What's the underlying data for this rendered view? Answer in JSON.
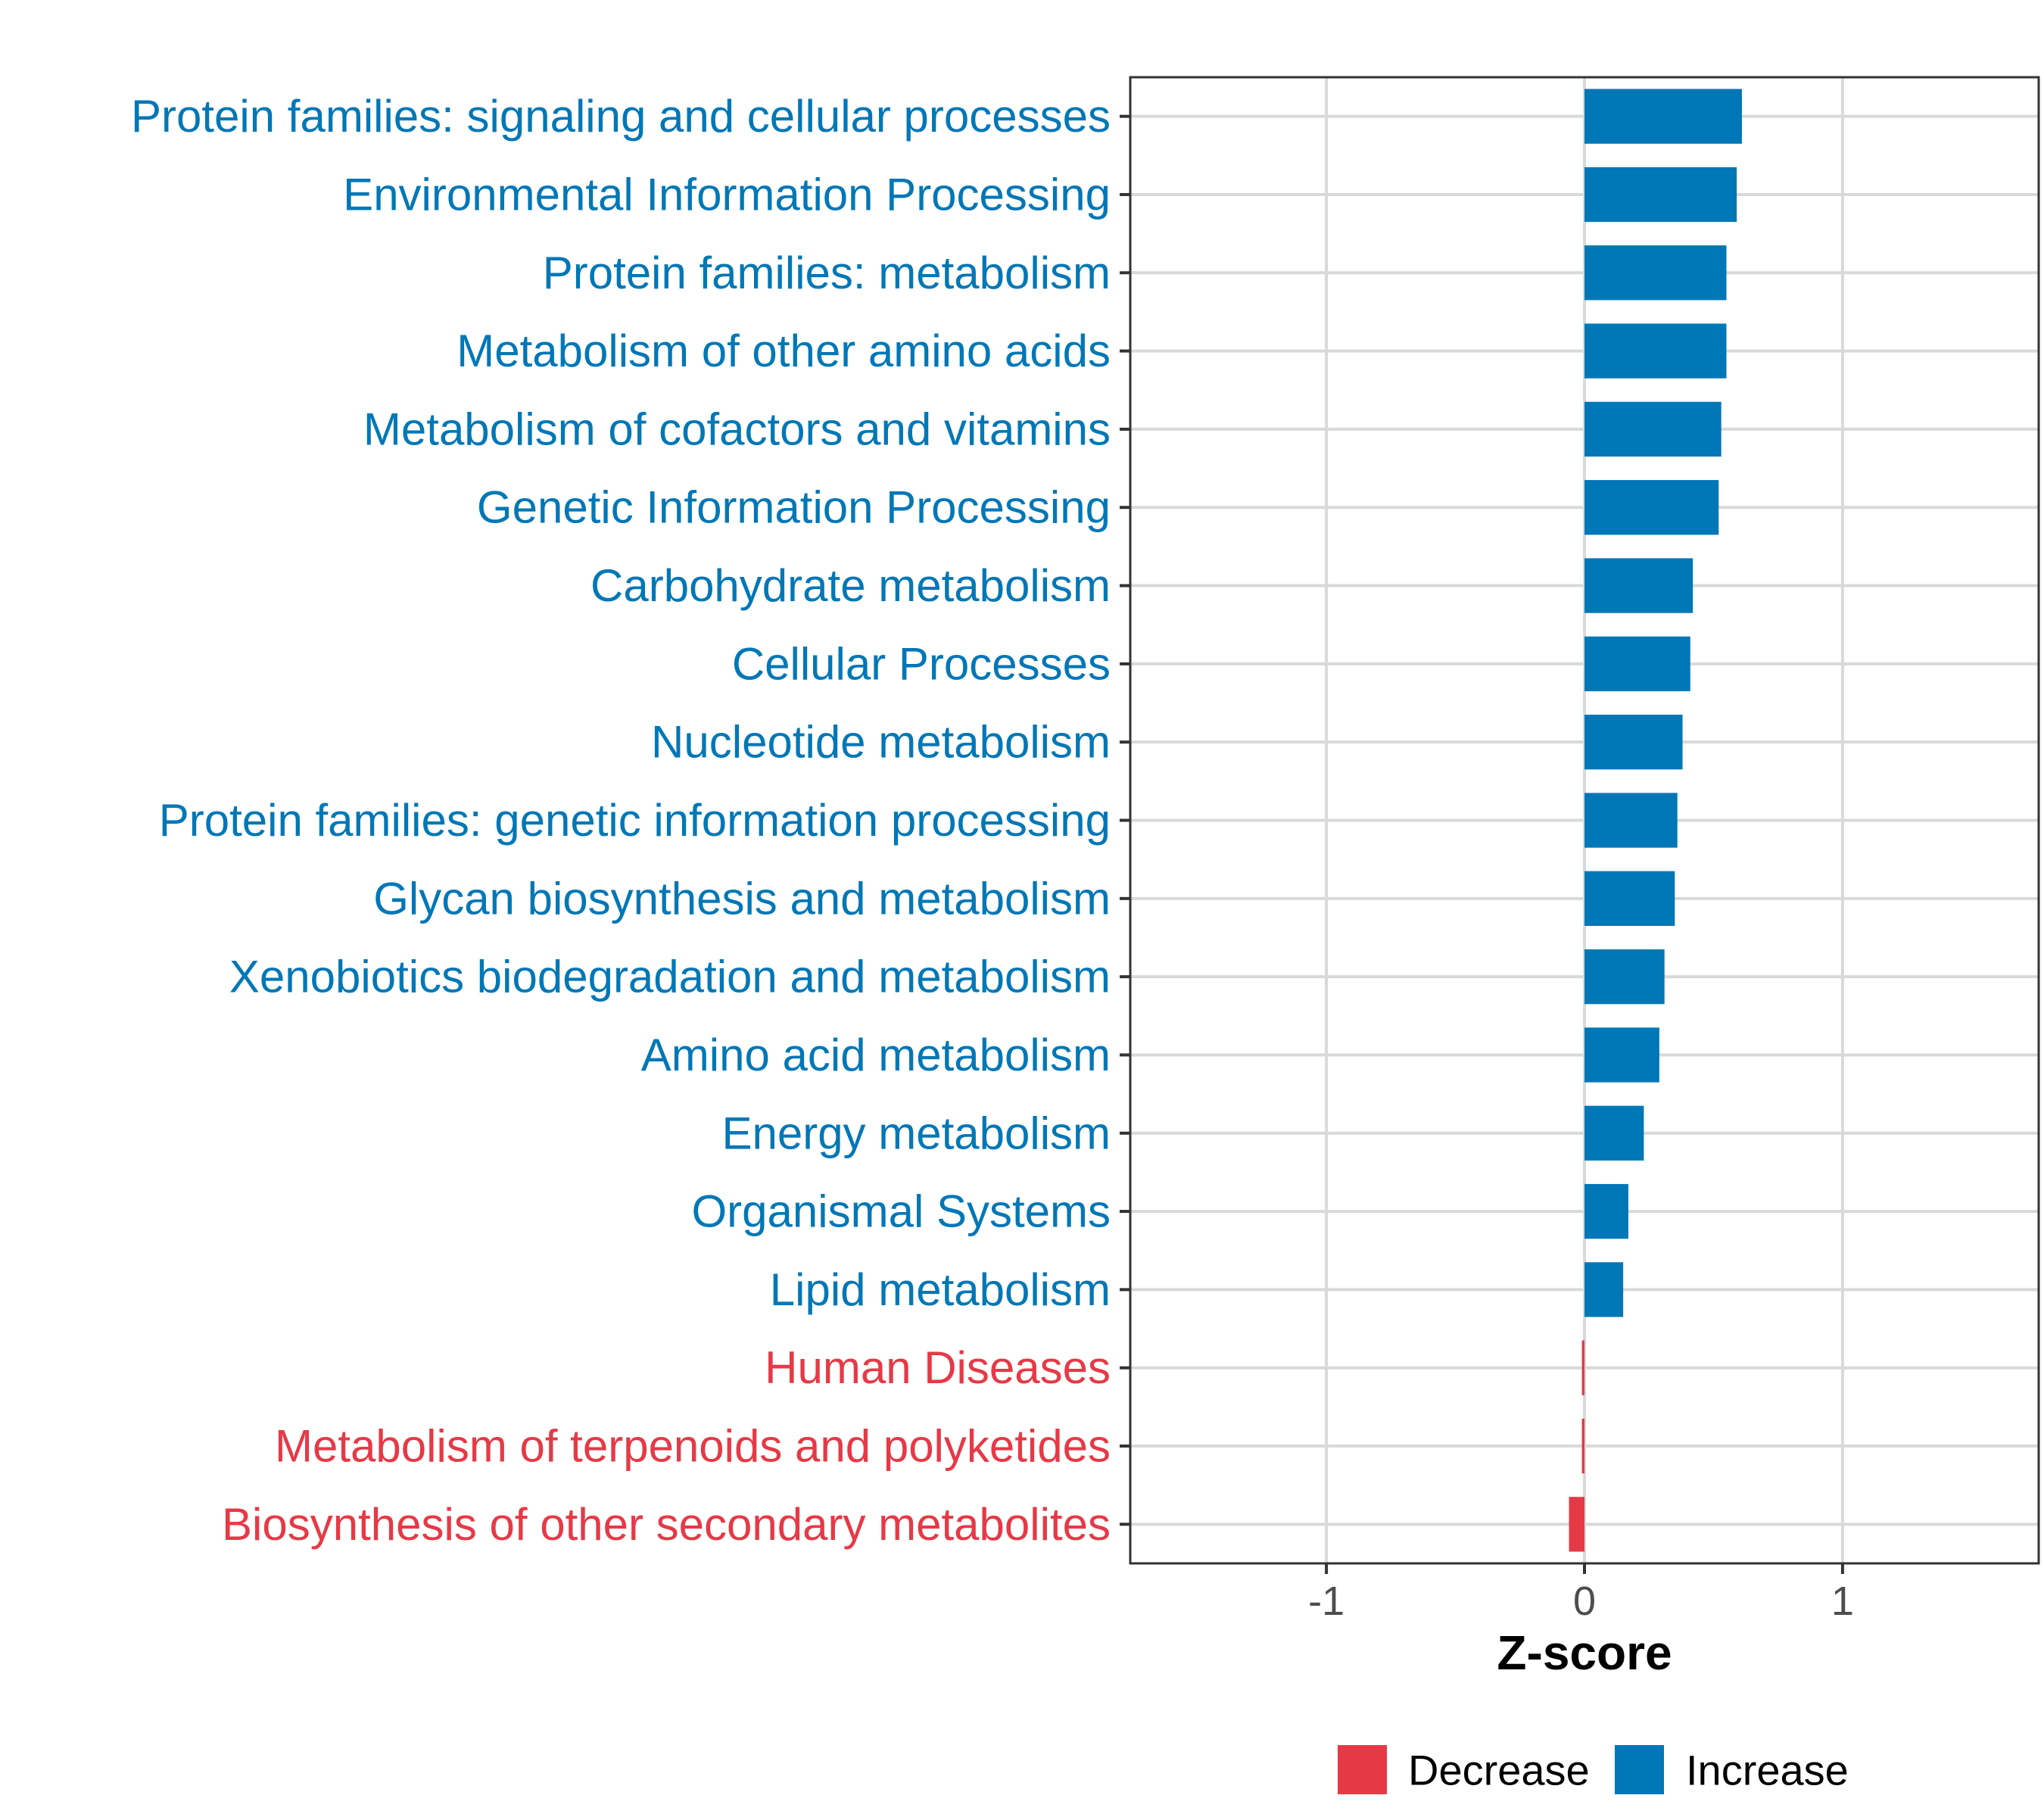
{
  "colors": {
    "decrease": "#E63946",
    "increase": "#0077B6",
    "grid": "#D9D9D9",
    "panel_border": "#333333",
    "tick_text": "#4D4D4D"
  },
  "chart_data": {
    "type": "bar",
    "orientation": "horizontal",
    "title": "",
    "xlabel": "Z-score",
    "ylabel": "",
    "xlim": [
      -1.76,
      1.76
    ],
    "xticks": [
      -1,
      0,
      1
    ],
    "xtick_labels": [
      "-1",
      "0",
      "1"
    ],
    "grid": true,
    "legend_position": "bottom",
    "legend": [
      {
        "label": "Decrease",
        "color_key": "decrease"
      },
      {
        "label": "Increase",
        "color_key": "increase"
      }
    ],
    "categories": [
      "Protein families: signaling and cellular processes",
      "Environmental Information Processing",
      "Protein families: metabolism",
      "Metabolism of other amino acids",
      "Metabolism of cofactors and vitamins",
      "Genetic Information Processing",
      "Carbohydrate metabolism",
      "Cellular Processes",
      "Nucleotide metabolism",
      "Protein families: genetic information processing",
      "Glycan biosynthesis and metabolism",
      "Xenobiotics biodegradation and metabolism",
      "Amino acid metabolism",
      "Energy metabolism",
      "Organismal Systems",
      "Lipid metabolism",
      "Human Diseases",
      "Metabolism of terpenoids and polyketides",
      "Biosynthesis of other secondary metabolites"
    ],
    "values": [
      0.61,
      0.59,
      0.55,
      0.55,
      0.53,
      0.52,
      0.42,
      0.41,
      0.38,
      0.36,
      0.35,
      0.31,
      0.29,
      0.23,
      0.17,
      0.15,
      -0.01,
      -0.01,
      -0.06
    ],
    "direction": [
      "Increase",
      "Increase",
      "Increase",
      "Increase",
      "Increase",
      "Increase",
      "Increase",
      "Increase",
      "Increase",
      "Increase",
      "Increase",
      "Increase",
      "Increase",
      "Increase",
      "Increase",
      "Increase",
      "Decrease",
      "Decrease",
      "Decrease"
    ]
  }
}
